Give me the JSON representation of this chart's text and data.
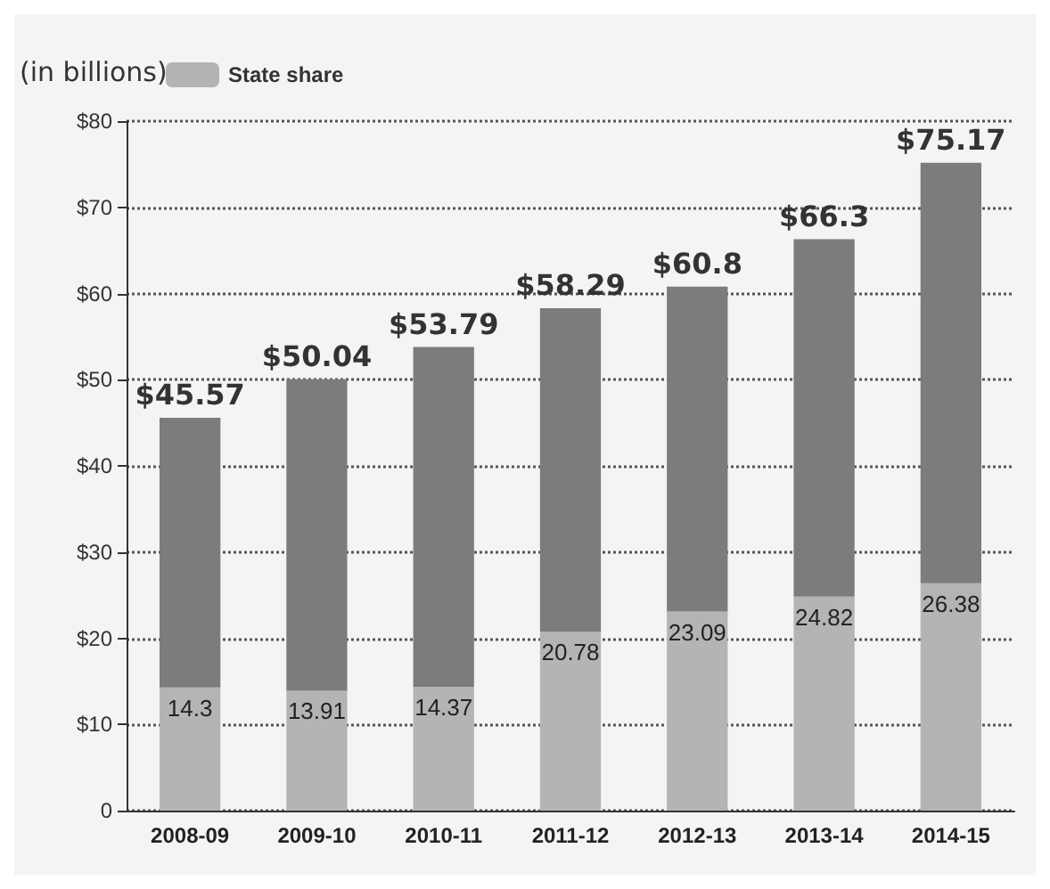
{
  "chart_data": {
    "type": "bar",
    "ylabel": "(in billions)",
    "categories": [
      "2008-09",
      "2009-10",
      "2010-11",
      "2011-12",
      "2012-13",
      "2013-14",
      "2014-15"
    ],
    "stacked": true,
    "series": [
      {
        "name": "State share",
        "color": "#b4b4b4",
        "values": [
          14.3,
          13.91,
          14.37,
          20.78,
          23.09,
          24.82,
          26.38
        ],
        "value_labels": [
          "14.3",
          "13.91",
          "14.37",
          "20.78",
          "23.09",
          "24.82",
          "26.38"
        ]
      },
      {
        "color": "#7c7c7c",
        "values": [
          31.27,
          36.13,
          39.42,
          37.51,
          37.71,
          41.48,
          48.79
        ]
      }
    ],
    "totals": [
      "$45.57",
      "$50.04",
      "$53.79",
      "$58.29",
      "$60.8",
      "$66.3",
      "$75.17"
    ],
    "ylim": [
      0,
      80
    ],
    "yticks": [
      0,
      {
        "value": 10,
        "label": "$10"
      },
      {
        "value": 20,
        "label": "$20"
      },
      {
        "value": 30,
        "label": "$30"
      },
      {
        "value": 40,
        "label": "$40"
      },
      {
        "value": 50,
        "label": "$50"
      },
      {
        "value": 60,
        "label": "$60"
      },
      {
        "value": 70,
        "label": "$70"
      },
      {
        "value": 80,
        "label": "$80"
      }
    ],
    "grid": "y",
    "legend": "top left"
  }
}
